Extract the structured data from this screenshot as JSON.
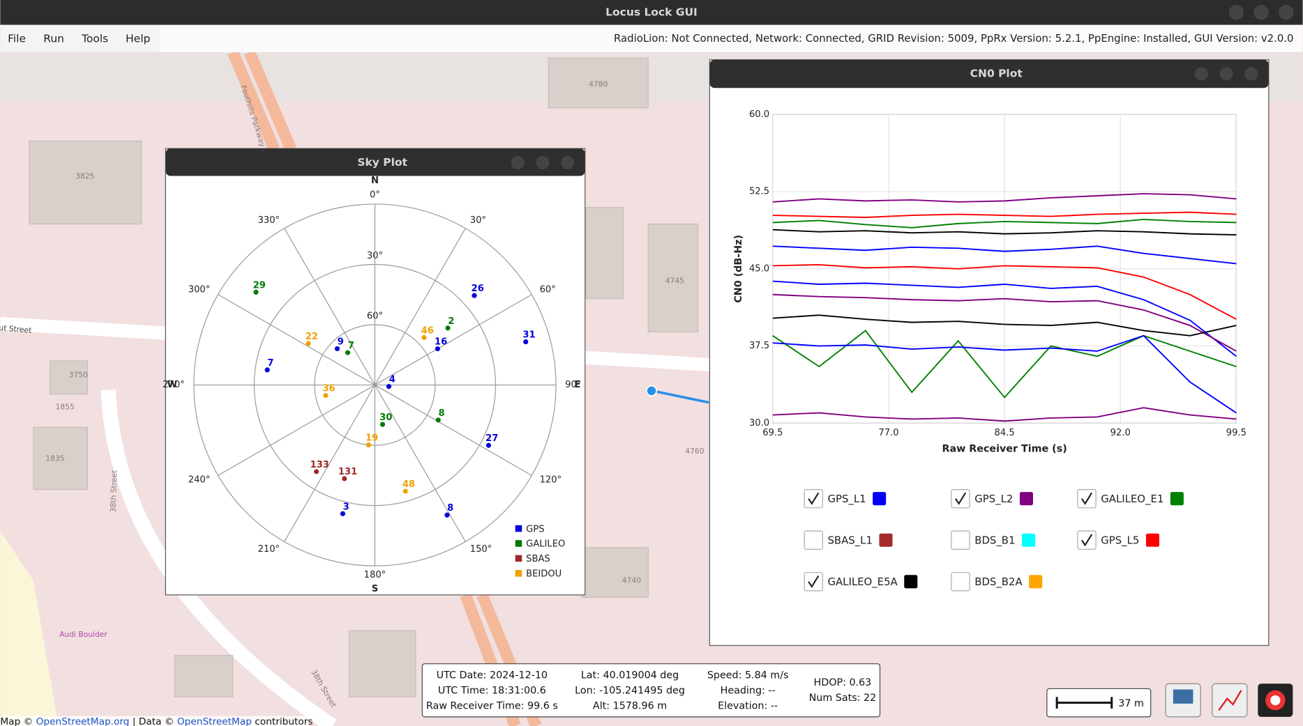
{
  "window": {
    "title": "Locus Lock GUI"
  },
  "menu": [
    "File",
    "Run",
    "Tools",
    "Help"
  ],
  "status": "RadioLion: Not Connected,  Network: Connected,  GRID Revision: 5009,  PpRx Version: 5.2.1,  PpEngine: Installed,  GUI Version: v2.0.0",
  "map": {
    "labels": [
      "3825",
      "4780",
      "4745",
      "3750",
      "1855",
      "1835",
      "38th Street",
      "Foothills Parkway",
      "Audi Boulder",
      "ut Street",
      "4760",
      "4740",
      "38th Street"
    ],
    "scale": "37 m",
    "attribution": [
      "Map © ",
      "OpenStreetMap.org",
      " | Data © ",
      "OpenStreetMap",
      " contributors"
    ]
  },
  "sky_plot": {
    "title": "Sky Plot",
    "compass": [
      "N",
      "E",
      "S",
      "W"
    ],
    "elevation_lim": [
      0,
      90
    ],
    "elevation_ticks": [
      {
        "value": 30,
        "label": "30°"
      },
      {
        "value": 60,
        "label": "60°"
      }
    ],
    "azimuth_ticks": [
      {
        "value": 0,
        "label": "0°"
      },
      {
        "value": 30,
        "label": "30°"
      },
      {
        "value": 60,
        "label": "60°"
      },
      {
        "value": 90,
        "label": "90°"
      },
      {
        "value": 120,
        "label": "120°"
      },
      {
        "value": 150,
        "label": "150°"
      },
      {
        "value": 180,
        "label": "180°"
      },
      {
        "value": 210,
        "label": "210°"
      },
      {
        "value": 240,
        "label": "240°"
      },
      {
        "value": 270,
        "label": "270°"
      },
      {
        "value": 300,
        "label": "300°"
      },
      {
        "value": 330,
        "label": "330°"
      }
    ],
    "constellations": [
      {
        "name": "GPS",
        "color": "#0000dd"
      },
      {
        "name": "GALILEO",
        "color": "#007a00"
      },
      {
        "name": "SBAS",
        "color": "#a02828"
      },
      {
        "name": "BEIDOU",
        "color": "#f0a000"
      }
    ],
    "satellites": [
      {
        "prn": 29,
        "constellation": 1,
        "azimuth": 308,
        "elevation": 15
      },
      {
        "prn": 26,
        "constellation": 0,
        "azimuth": 48,
        "elevation": 23.5
      },
      {
        "prn": 2,
        "constellation": 1,
        "azimuth": 52,
        "elevation": 44
      },
      {
        "prn": 46,
        "constellation": 3,
        "azimuth": 46,
        "elevation": 56
      },
      {
        "prn": 16,
        "constellation": 0,
        "azimuth": 60,
        "elevation": 54
      },
      {
        "prn": 31,
        "constellation": 0,
        "azimuth": 74,
        "elevation": 12
      },
      {
        "prn": 22,
        "constellation": 3,
        "azimuth": 302,
        "elevation": 51
      },
      {
        "prn": 9,
        "constellation": 0,
        "azimuth": 314,
        "elevation": 64
      },
      {
        "prn": 7,
        "constellation": 1,
        "azimuth": 320,
        "elevation": 69
      },
      {
        "prn": 7,
        "constellation": 0,
        "azimuth": 278,
        "elevation": 36
      },
      {
        "prn": 4,
        "constellation": 0,
        "azimuth": 96,
        "elevation": 83
      },
      {
        "prn": 36,
        "constellation": 3,
        "azimuth": 258,
        "elevation": 65
      },
      {
        "prn": 30,
        "constellation": 1,
        "azimuth": 169,
        "elevation": 70
      },
      {
        "prn": 8,
        "constellation": 1,
        "azimuth": 119,
        "elevation": 54
      },
      {
        "prn": 19,
        "constellation": 3,
        "azimuth": 186,
        "elevation": 60
      },
      {
        "prn": 27,
        "constellation": 0,
        "azimuth": 118,
        "elevation": 26
      },
      {
        "prn": 133,
        "constellation": 2,
        "azimuth": 214,
        "elevation": 38
      },
      {
        "prn": 131,
        "constellation": 2,
        "azimuth": 198,
        "elevation": 41
      },
      {
        "prn": 48,
        "constellation": 3,
        "azimuth": 164,
        "elevation": 35
      },
      {
        "prn": 3,
        "constellation": 0,
        "azimuth": 194,
        "elevation": 24
      },
      {
        "prn": 8,
        "constellation": 0,
        "azimuth": 151,
        "elevation": 16
      }
    ]
  },
  "cn0_plot": {
    "type": "line",
    "title": "CN0 Plot",
    "xlabel": "Raw Receiver Time (s)",
    "ylabel": "CN0 (dB-Hz)",
    "xlim": [
      69.5,
      99.5
    ],
    "xticks": [
      69.5,
      {
        "value": 77,
        "label": "77.0"
      },
      84.5,
      {
        "value": 92,
        "label": "92.0"
      },
      99.5
    ],
    "ylim": [
      30,
      60
    ],
    "yticks": [
      {
        "value": 30,
        "label": "30.0"
      },
      37.5,
      {
        "value": 45,
        "label": "45.0"
      },
      52.5,
      {
        "value": 60,
        "label": "60.0"
      }
    ],
    "grid": true,
    "x": [
      69.5,
      72.5,
      75.5,
      78.5,
      81.5,
      84.5,
      87.5,
      90.5,
      93.5,
      96.5,
      99.5
    ],
    "series": [
      {
        "color": "#800080",
        "values": [
          51.5,
          51.8,
          51.6,
          51.7,
          51.5,
          51.6,
          51.9,
          52.1,
          52.3,
          52.2,
          51.8
        ]
      },
      {
        "color": "#ff0000",
        "values": [
          50.2,
          50.1,
          50.0,
          50.2,
          50.3,
          50.2,
          50.1,
          50.3,
          50.4,
          50.5,
          50.3
        ]
      },
      {
        "color": "#008000",
        "values": [
          49.5,
          49.7,
          49.3,
          49.0,
          49.4,
          49.6,
          49.5,
          49.4,
          49.8,
          49.6,
          49.5
        ]
      },
      {
        "color": "#000000",
        "values": [
          48.8,
          48.6,
          48.7,
          48.5,
          48.6,
          48.4,
          48.5,
          48.7,
          48.6,
          48.4,
          48.3
        ]
      },
      {
        "color": "#0000ff",
        "values": [
          47.2,
          47.0,
          46.8,
          47.1,
          47.0,
          46.7,
          46.9,
          47.2,
          46.5,
          46.0,
          45.5
        ]
      },
      {
        "color": "#ff0000",
        "values": [
          45.3,
          45.4,
          45.1,
          45.2,
          45.0,
          45.3,
          45.2,
          45.1,
          44.2,
          42.5,
          40.1
        ]
      },
      {
        "color": "#0000ff",
        "values": [
          43.8,
          43.5,
          43.6,
          43.4,
          43.2,
          43.5,
          43.1,
          43.3,
          42.0,
          40.0,
          36.5
        ]
      },
      {
        "color": "#800080",
        "values": [
          42.5,
          42.3,
          42.2,
          42.0,
          41.9,
          42.1,
          41.8,
          41.9,
          41.0,
          39.5,
          37.0
        ]
      },
      {
        "color": "#000000",
        "values": [
          40.2,
          40.5,
          40.1,
          39.8,
          39.9,
          39.6,
          39.5,
          39.8,
          39.0,
          38.5,
          39.5
        ]
      },
      {
        "color": "#008000",
        "values": [
          38.5,
          35.5,
          39.0,
          33.0,
          38.0,
          32.5,
          37.5,
          36.5,
          38.5,
          37.0,
          35.5
        ]
      },
      {
        "color": "#0000ff",
        "values": [
          37.8,
          37.5,
          37.6,
          37.2,
          37.4,
          37.1,
          37.3,
          37.0,
          38.5,
          34.0,
          31.0
        ]
      },
      {
        "color": "#800080",
        "values": [
          30.8,
          31.0,
          30.6,
          30.4,
          30.5,
          30.2,
          30.5,
          30.6,
          31.5,
          30.8,
          30.4
        ]
      }
    ],
    "signals": [
      {
        "name": "GPS_L1",
        "color": "#0000ff",
        "checked": true
      },
      {
        "name": "GPS_L2",
        "color": "#800080",
        "checked": true
      },
      {
        "name": "GALILEO_E1",
        "color": "#008000",
        "checked": true
      },
      {
        "name": "SBAS_L1",
        "color": "#a52a2a",
        "checked": false
      },
      {
        "name": "BDS_B1",
        "color": "#00ffff",
        "checked": false
      },
      {
        "name": "GPS_L5",
        "color": "#ff0000",
        "checked": true
      },
      {
        "name": "GALILEO_E5A",
        "color": "#000000",
        "checked": true
      },
      {
        "name": "BDS_B2A",
        "color": "#ffa500",
        "checked": false
      }
    ]
  },
  "info": [
    [
      "UTC Date: 2024-12-10",
      "UTC Time: 18:31:00.6",
      "Raw Receiver Time: 99.6 s"
    ],
    [
      "Lat: 40.019004 deg",
      "Lon: -105.241495 deg",
      "Alt: 1578.96 m"
    ],
    [
      "Speed: 5.84 m/s",
      "Heading: --",
      "Elevation: --"
    ],
    [
      "HDOP: 0.63",
      "Num Sats: 22"
    ]
  ]
}
